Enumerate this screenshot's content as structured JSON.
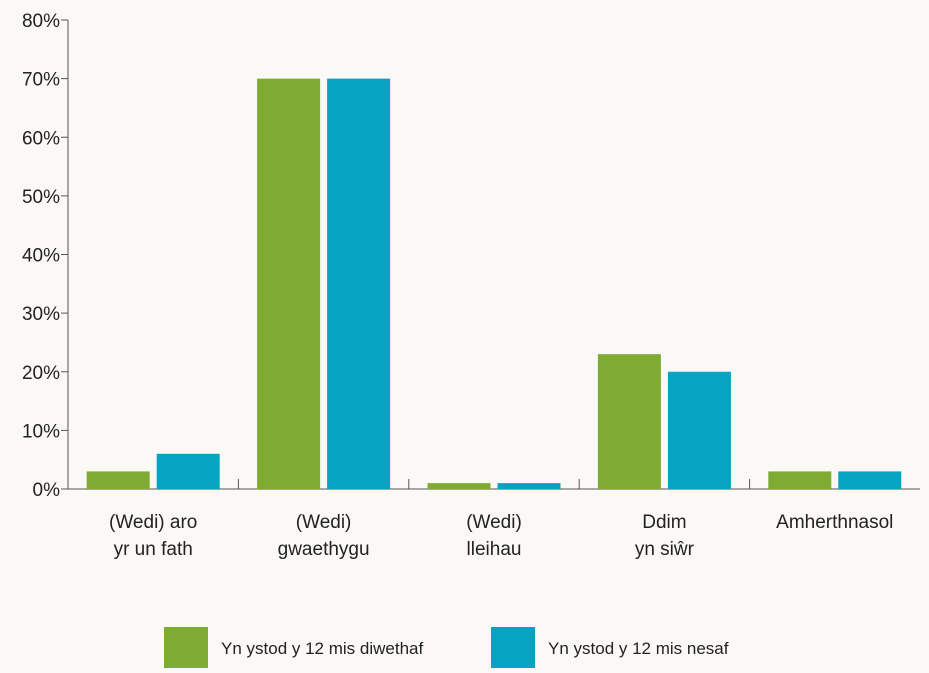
{
  "chart_data": {
    "type": "bar",
    "categories": [
      [
        "(Wedi) aro",
        "yr un fath"
      ],
      [
        "(Wedi)",
        "gwaethygu"
      ],
      [
        "(Wedi)",
        "lleihau"
      ],
      [
        "Ddim",
        "yn siŵr"
      ],
      [
        "Amherthnasol"
      ]
    ],
    "series": [
      {
        "name": "Yn ystod y 12 mis diwethaf",
        "color": "#7fab33",
        "values": [
          3,
          70,
          1,
          23,
          3
        ]
      },
      {
        "name": "Yn ystod y 12 mis nesaf",
        "color": "#07a3c2",
        "values": [
          6,
          70,
          1,
          20,
          3
        ]
      }
    ],
    "ylim": [
      0,
      80
    ],
    "y_ticks": [
      0,
      10,
      20,
      30,
      40,
      50,
      60,
      70,
      80
    ],
    "y_tick_labels": [
      "0%",
      "10%",
      "20%",
      "30%",
      "40%",
      "50%",
      "60%",
      "70%",
      "80%"
    ],
    "xlabel": "",
    "ylabel": "",
    "title": "",
    "grid": false,
    "legend": "bottom"
  }
}
